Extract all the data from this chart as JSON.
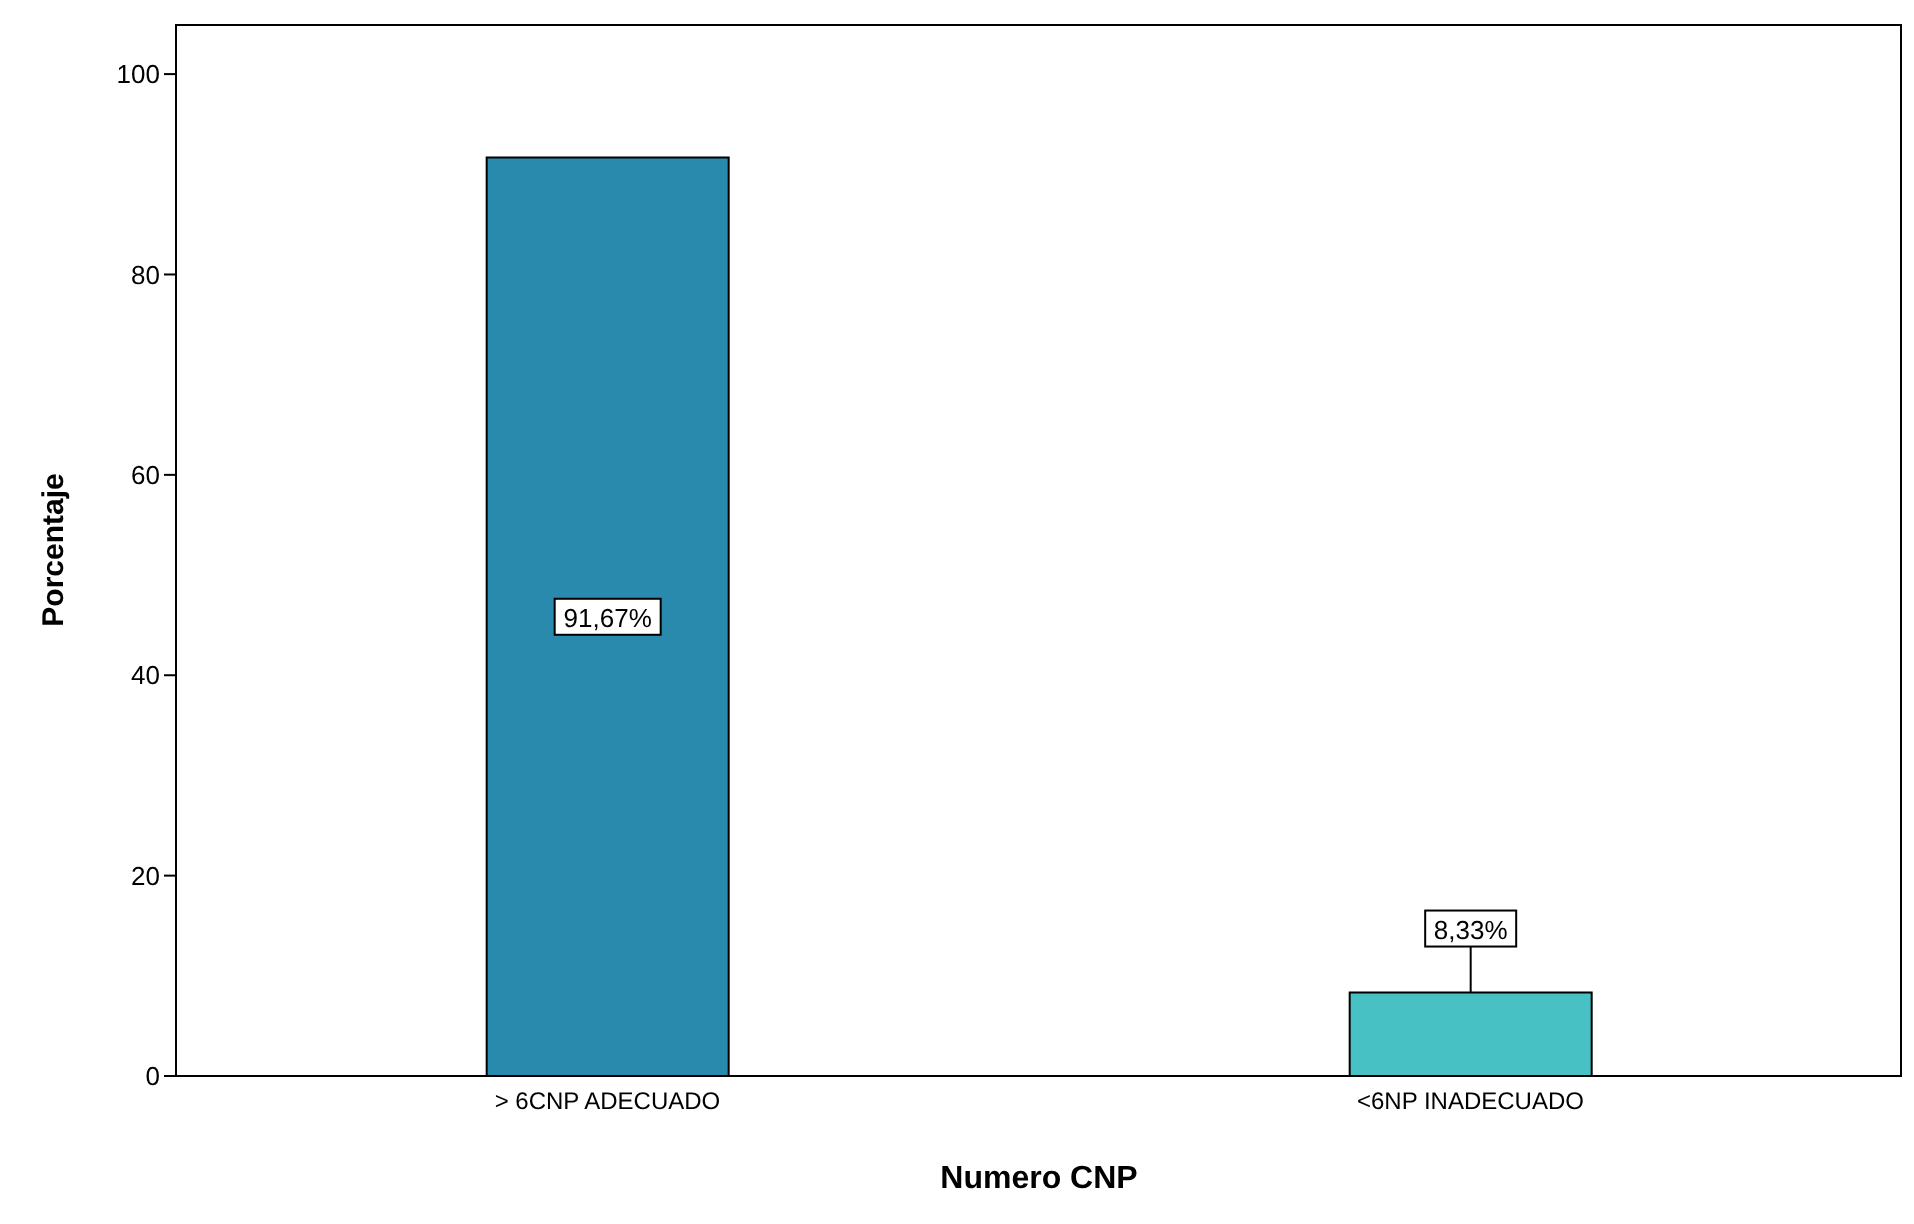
{
  "chart_data": {
    "type": "bar",
    "xlabel": "Numero CNP",
    "ylabel": "Porcentaje",
    "categories": [
      "> 6CNP ADECUADO",
      "<6NP INADECUADO"
    ],
    "values": [
      91.67,
      8.33
    ],
    "colors": [
      "#2a8aad",
      "#48c1c4"
    ],
    "value_labels": [
      "91,67%",
      "8,33%"
    ],
    "ylim": [
      0,
      105
    ],
    "yticks": [
      0,
      20,
      40,
      60,
      80,
      100
    ],
    "grid": false
  }
}
